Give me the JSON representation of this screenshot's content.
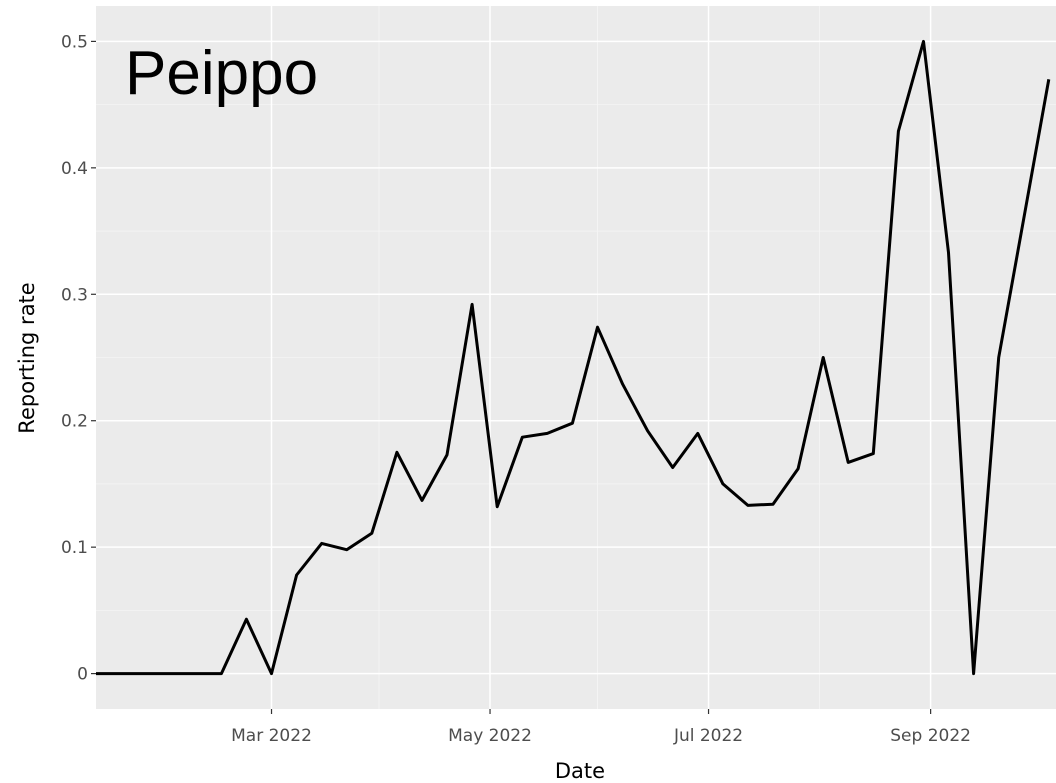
{
  "chart_data": {
    "type": "line",
    "title": "Peippo",
    "xlabel": "Date",
    "ylabel": "Reporting rate",
    "x_tick_labels": [
      {
        "date": "2022-03-01",
        "label": "Mar 2022"
      },
      {
        "date": "2022-05-01",
        "label": "May 2022"
      },
      {
        "date": "2022-07-01",
        "label": "Jul 2022"
      },
      {
        "date": "2022-09-01",
        "label": "Sep 2022"
      }
    ],
    "y_ticks": [
      0,
      0.1,
      0.2,
      0.3,
      0.4,
      0.5
    ],
    "y_tick_labels": [
      "0",
      "0.1",
      "0.2",
      "0.3",
      "0.4",
      "0.5"
    ],
    "xlim": [
      "2022-01-11",
      "2022-10-06"
    ],
    "ylim": [
      -0.028,
      0.528
    ],
    "grid": true,
    "series": [
      {
        "color": "#000000",
        "points": [
          {
            "x": "2022-01-11",
            "y": 0
          },
          {
            "x": "2022-01-18",
            "y": 0
          },
          {
            "x": "2022-01-25",
            "y": 0
          },
          {
            "x": "2022-02-01",
            "y": 0
          },
          {
            "x": "2022-02-08",
            "y": 0
          },
          {
            "x": "2022-02-15",
            "y": 0
          },
          {
            "x": "2022-02-22",
            "y": 0.043
          },
          {
            "x": "2022-03-01",
            "y": 0
          },
          {
            "x": "2022-03-08",
            "y": 0.078
          },
          {
            "x": "2022-03-15",
            "y": 0.103
          },
          {
            "x": "2022-03-22",
            "y": 0.098
          },
          {
            "x": "2022-03-29",
            "y": 0.111
          },
          {
            "x": "2022-04-05",
            "y": 0.175
          },
          {
            "x": "2022-04-12",
            "y": 0.137
          },
          {
            "x": "2022-04-19",
            "y": 0.173
          },
          {
            "x": "2022-04-26",
            "y": 0.292
          },
          {
            "x": "2022-05-03",
            "y": 0.132
          },
          {
            "x": "2022-05-10",
            "y": 0.187
          },
          {
            "x": "2022-05-17",
            "y": 0.19
          },
          {
            "x": "2022-05-24",
            "y": 0.198
          },
          {
            "x": "2022-05-31",
            "y": 0.274
          },
          {
            "x": "2022-06-07",
            "y": 0.229
          },
          {
            "x": "2022-06-14",
            "y": 0.192
          },
          {
            "x": "2022-06-21",
            "y": 0.163
          },
          {
            "x": "2022-06-28",
            "y": 0.19
          },
          {
            "x": "2022-07-05",
            "y": 0.15
          },
          {
            "x": "2022-07-12",
            "y": 0.133
          },
          {
            "x": "2022-07-19",
            "y": 0.134
          },
          {
            "x": "2022-07-26",
            "y": 0.162
          },
          {
            "x": "2022-08-02",
            "y": 0.25
          },
          {
            "x": "2022-08-09",
            "y": 0.167
          },
          {
            "x": "2022-08-16",
            "y": 0.174
          },
          {
            "x": "2022-08-23",
            "y": 0.429
          },
          {
            "x": "2022-08-30",
            "y": 0.5
          },
          {
            "x": "2022-09-06",
            "y": 0.333
          },
          {
            "x": "2022-09-13",
            "y": 0
          },
          {
            "x": "2022-09-20",
            "y": 0.25
          },
          {
            "x": "2022-09-27",
            "y": 0.36
          },
          {
            "x": "2022-10-04",
            "y": 0.47
          }
        ]
      }
    ]
  }
}
